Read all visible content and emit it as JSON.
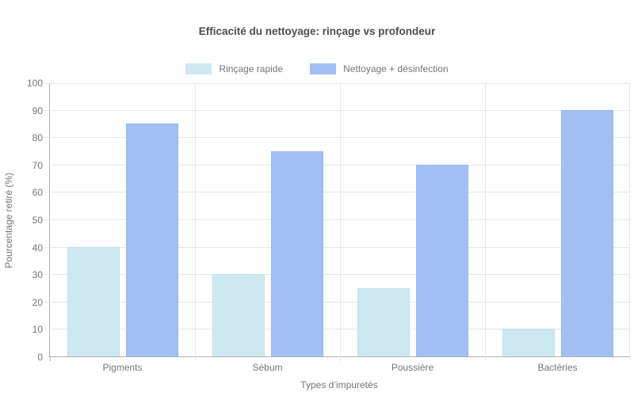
{
  "chart_data": {
    "type": "bar",
    "title": "Efficacité du nettoyage: rinçage vs profondeur",
    "categories": [
      "Pigments",
      "Sébum",
      "Poussière",
      "Bactéries"
    ],
    "series": [
      {
        "name": "Rinçage rapide",
        "values": [
          40,
          30,
          25,
          10
        ],
        "fill": "#cee8f0",
        "border": "#bce1ec"
      },
      {
        "name": "Nettoyage + désinfection",
        "values": [
          85,
          75,
          70,
          90
        ],
        "fill": "#a2bff4",
        "border": "#96b7f2"
      }
    ],
    "xlabel": "Types d’impuretés",
    "ylabel": "Pourcentage retiré (%)",
    "ylim": [
      0,
      100
    ],
    "ystep": 10,
    "grid": true,
    "legend_position": "top",
    "colors": {
      "title_text": "#4d4d4d",
      "axis_text": "#757575",
      "grid_line": "#e6e6e6",
      "axis_line": "#b0b0b0"
    }
  }
}
